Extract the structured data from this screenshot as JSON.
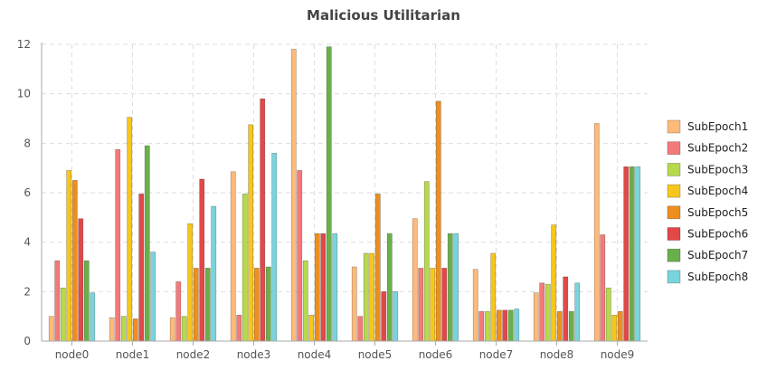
{
  "chart_data": {
    "type": "bar",
    "title": "Malicious Utilitarian",
    "xlabel": "",
    "ylabel": "",
    "ylim": [
      0,
      12
    ],
    "yticks": [
      0,
      2,
      4,
      6,
      8,
      10,
      12
    ],
    "grid": true,
    "legend_position": "right",
    "categories": [
      "node0",
      "node1",
      "node2",
      "node3",
      "node4",
      "node5",
      "node6",
      "node7",
      "node8",
      "node9"
    ],
    "series": [
      {
        "name": "SubEpoch1",
        "color": "#ffb978",
        "values": [
          1.0,
          0.95,
          0.95,
          6.85,
          11.8,
          3.0,
          4.95,
          2.9,
          1.95,
          8.8
        ]
      },
      {
        "name": "SubEpoch2",
        "color": "#f47a7a",
        "values": [
          3.25,
          7.75,
          2.4,
          1.05,
          6.9,
          1.0,
          2.95,
          1.2,
          2.35,
          4.3
        ]
      },
      {
        "name": "SubEpoch3",
        "color": "#b7d94c",
        "values": [
          2.15,
          1.0,
          1.0,
          5.95,
          3.25,
          3.55,
          6.45,
          1.2,
          2.3,
          2.15
        ]
      },
      {
        "name": "SubEpoch4",
        "color": "#f7c61c",
        "values": [
          6.9,
          9.05,
          4.75,
          8.75,
          1.05,
          3.55,
          2.95,
          3.55,
          4.7,
          1.05
        ]
      },
      {
        "name": "SubEpoch5",
        "color": "#ee8e1e",
        "values": [
          6.5,
          0.9,
          2.95,
          2.95,
          4.35,
          5.95,
          9.7,
          1.25,
          1.2,
          1.2
        ]
      },
      {
        "name": "SubEpoch6",
        "color": "#e24848",
        "values": [
          4.95,
          5.95,
          6.55,
          9.8,
          4.35,
          2.0,
          2.95,
          1.25,
          2.6,
          7.05
        ]
      },
      {
        "name": "SubEpoch7",
        "color": "#6ab04a",
        "values": [
          3.25,
          7.9,
          2.95,
          3.0,
          11.9,
          4.35,
          4.35,
          1.25,
          1.2,
          7.05
        ]
      },
      {
        "name": "SubEpoch8",
        "color": "#79d4dc",
        "values": [
          1.95,
          3.6,
          5.45,
          7.6,
          4.35,
          2.0,
          4.35,
          1.3,
          2.35,
          7.05
        ]
      }
    ]
  }
}
